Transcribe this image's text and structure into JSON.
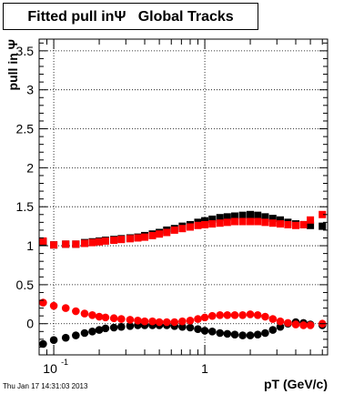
{
  "chart_data": {
    "type": "scatter",
    "title": "Fitted pull inΨ   Global Tracks",
    "xlabel": "pT (GeV/c)",
    "ylabel": "pull in Ψ",
    "xscale": "log",
    "xlim": [
      0.08,
      6.5
    ],
    "ylim": [
      -0.4,
      3.65
    ],
    "grid": true,
    "xtick_labels": [
      {
        "value": 0.1,
        "base": "10",
        "exp": "-1"
      },
      {
        "value": 1,
        "base": "1",
        "exp": ""
      }
    ],
    "ytick_labels": [
      "0",
      "0.5",
      "1",
      "1.5",
      "2",
      "2.5",
      "3",
      "3.5"
    ],
    "ytick_values": [
      0,
      0.5,
      1,
      1.5,
      2,
      2.5,
      3,
      3.5
    ],
    "series": [
      {
        "color": "#000000",
        "marker": "square",
        "points": [
          [
            0.085,
            1.05
          ],
          [
            0.1,
            1.01
          ],
          [
            0.12,
            1.02
          ],
          [
            0.14,
            1.02
          ],
          [
            0.16,
            1.04
          ],
          [
            0.18,
            1.05
          ],
          [
            0.2,
            1.06
          ],
          [
            0.22,
            1.07
          ],
          [
            0.25,
            1.08
          ],
          [
            0.28,
            1.09
          ],
          [
            0.32,
            1.1
          ],
          [
            0.36,
            1.11
          ],
          [
            0.4,
            1.13
          ],
          [
            0.45,
            1.15
          ],
          [
            0.5,
            1.17
          ],
          [
            0.56,
            1.2
          ],
          [
            0.63,
            1.22
          ],
          [
            0.71,
            1.25
          ],
          [
            0.8,
            1.27
          ],
          [
            0.9,
            1.3
          ],
          [
            1.0,
            1.32
          ],
          [
            1.12,
            1.34
          ],
          [
            1.26,
            1.36
          ],
          [
            1.41,
            1.37
          ],
          [
            1.58,
            1.38
          ],
          [
            1.78,
            1.39
          ],
          [
            2.0,
            1.4
          ],
          [
            2.24,
            1.39
          ],
          [
            2.51,
            1.37
          ],
          [
            2.82,
            1.35
          ],
          [
            3.16,
            1.33
          ],
          [
            3.55,
            1.3
          ],
          [
            4.0,
            1.28
          ],
          [
            4.5,
            1.27
          ],
          [
            5.0,
            1.26
          ],
          [
            6.0,
            1.25
          ]
        ]
      },
      {
        "color": "#ff0000",
        "marker": "square",
        "points": [
          [
            0.085,
            1.06
          ],
          [
            0.1,
            1.01
          ],
          [
            0.12,
            1.02
          ],
          [
            0.14,
            1.02
          ],
          [
            0.16,
            1.03
          ],
          [
            0.18,
            1.04
          ],
          [
            0.2,
            1.05
          ],
          [
            0.22,
            1.06
          ],
          [
            0.25,
            1.07
          ],
          [
            0.28,
            1.08
          ],
          [
            0.32,
            1.09
          ],
          [
            0.36,
            1.1
          ],
          [
            0.4,
            1.11
          ],
          [
            0.45,
            1.13
          ],
          [
            0.5,
            1.15
          ],
          [
            0.56,
            1.17
          ],
          [
            0.63,
            1.2
          ],
          [
            0.71,
            1.22
          ],
          [
            0.8,
            1.24
          ],
          [
            0.9,
            1.26
          ],
          [
            1.0,
            1.27
          ],
          [
            1.12,
            1.28
          ],
          [
            1.26,
            1.29
          ],
          [
            1.41,
            1.3
          ],
          [
            1.58,
            1.31
          ],
          [
            1.78,
            1.31
          ],
          [
            2.0,
            1.31
          ],
          [
            2.24,
            1.31
          ],
          [
            2.51,
            1.3
          ],
          [
            2.82,
            1.29
          ],
          [
            3.16,
            1.28
          ],
          [
            3.55,
            1.27
          ],
          [
            4.0,
            1.26
          ],
          [
            4.5,
            1.27
          ],
          [
            5.0,
            1.33
          ],
          [
            6.0,
            1.4
          ]
        ]
      },
      {
        "color": "#000000",
        "marker": "circle",
        "points": [
          [
            0.085,
            -0.26
          ],
          [
            0.1,
            -0.21
          ],
          [
            0.12,
            -0.18
          ],
          [
            0.14,
            -0.15
          ],
          [
            0.16,
            -0.12
          ],
          [
            0.18,
            -0.1
          ],
          [
            0.2,
            -0.08
          ],
          [
            0.22,
            -0.06
          ],
          [
            0.25,
            -0.05
          ],
          [
            0.28,
            -0.04
          ],
          [
            0.32,
            -0.03
          ],
          [
            0.36,
            -0.02
          ],
          [
            0.4,
            -0.02
          ],
          [
            0.45,
            -0.02
          ],
          [
            0.5,
            -0.02
          ],
          [
            0.56,
            -0.02
          ],
          [
            0.63,
            -0.03
          ],
          [
            0.71,
            -0.04
          ],
          [
            0.8,
            -0.05
          ],
          [
            0.9,
            -0.07
          ],
          [
            1.0,
            -0.09
          ],
          [
            1.12,
            -0.1
          ],
          [
            1.26,
            -0.12
          ],
          [
            1.41,
            -0.13
          ],
          [
            1.58,
            -0.14
          ],
          [
            1.78,
            -0.15
          ],
          [
            2.0,
            -0.15
          ],
          [
            2.24,
            -0.14
          ],
          [
            2.51,
            -0.12
          ],
          [
            2.82,
            -0.08
          ],
          [
            3.16,
            -0.04
          ],
          [
            3.55,
            0.0
          ],
          [
            4.0,
            0.02
          ],
          [
            4.5,
            0.01
          ],
          [
            5.0,
            -0.01
          ],
          [
            6.0,
            -0.02
          ]
        ]
      },
      {
        "color": "#ff0000",
        "marker": "circle",
        "points": [
          [
            0.085,
            0.27
          ],
          [
            0.1,
            0.23
          ],
          [
            0.12,
            0.2
          ],
          [
            0.14,
            0.16
          ],
          [
            0.16,
            0.13
          ],
          [
            0.18,
            0.11
          ],
          [
            0.2,
            0.09
          ],
          [
            0.22,
            0.08
          ],
          [
            0.25,
            0.07
          ],
          [
            0.28,
            0.06
          ],
          [
            0.32,
            0.05
          ],
          [
            0.36,
            0.04
          ],
          [
            0.4,
            0.03
          ],
          [
            0.45,
            0.03
          ],
          [
            0.5,
            0.02
          ],
          [
            0.56,
            0.02
          ],
          [
            0.63,
            0.02
          ],
          [
            0.71,
            0.03
          ],
          [
            0.8,
            0.04
          ],
          [
            0.9,
            0.06
          ],
          [
            1.0,
            0.08
          ],
          [
            1.12,
            0.1
          ],
          [
            1.26,
            0.11
          ],
          [
            1.41,
            0.11
          ],
          [
            1.58,
            0.11
          ],
          [
            1.78,
            0.11
          ],
          [
            2.0,
            0.12
          ],
          [
            2.24,
            0.11
          ],
          [
            2.51,
            0.09
          ],
          [
            2.82,
            0.06
          ],
          [
            3.16,
            0.03
          ],
          [
            3.55,
            0.01
          ],
          [
            4.0,
            -0.01
          ],
          [
            4.5,
            -0.02
          ],
          [
            5.0,
            -0.02
          ],
          [
            6.0,
            0.0
          ]
        ]
      }
    ]
  },
  "timestamp": "Thu Jan 17 14:31:03 2013"
}
